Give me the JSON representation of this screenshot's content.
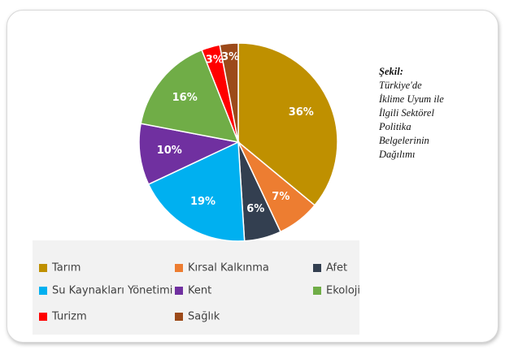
{
  "chart_data": {
    "type": "pie",
    "categories": [
      "Tarım",
      "Kırsal Kalkınma",
      "Afet",
      "Su Kaynakları Yönetimi",
      "Kent",
      "Ekoloji",
      "Turizm",
      "Sağlık"
    ],
    "values": [
      36,
      7,
      6,
      19,
      10,
      16,
      3,
      3
    ],
    "value_labels": [
      "36%",
      "7%",
      "6%",
      "19%",
      "10%",
      "16%",
      "3%",
      "3%"
    ],
    "colors": [
      "#bf9000",
      "#ed7d31",
      "#333f50",
      "#00b0f0",
      "#7030a0",
      "#70ad47",
      "#ff0000",
      "#9c4a1a"
    ],
    "legend": "bottom"
  },
  "caption": {
    "label": "Şekil:",
    "lines": [
      "Türkiye'de",
      "İklime Uyum ile",
      "İlgili Sektörel",
      "Politika",
      "Belgelerinin",
      "Dağılımı"
    ]
  }
}
